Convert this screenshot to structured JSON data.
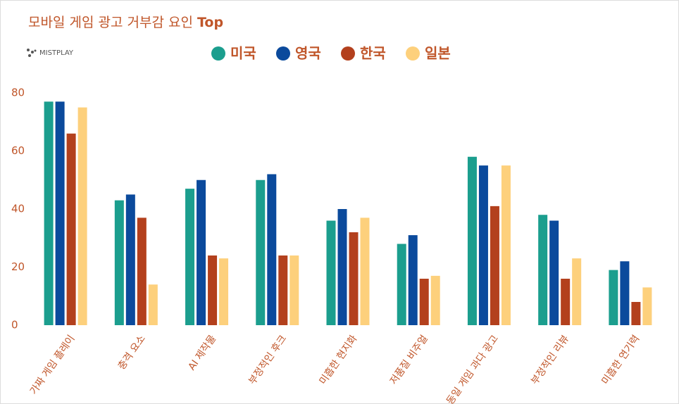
{
  "chart_data": {
    "type": "bar",
    "title": "모바일 게임 광고 거부감 요인",
    "title_emphasis": "Top",
    "brand": "MISTPLAY",
    "categories": [
      "가짜 게임 플레이",
      "충격 요소",
      "AI 제작물",
      "부정적인 후크",
      "미흡한 현지화",
      "저품질 비주얼",
      "동일 게임 과다 광고",
      "부정적인 리뷰",
      "미흡한 연기력"
    ],
    "series": [
      {
        "name": "미국",
        "color": "#1b9e8e",
        "values": [
          77,
          43,
          47,
          50,
          36,
          28,
          58,
          38,
          19
        ]
      },
      {
        "name": "영국",
        "color": "#0b4a9c",
        "values": [
          77,
          45,
          50,
          52,
          40,
          31,
          55,
          36,
          22
        ]
      },
      {
        "name": "한국",
        "color": "#b3401d",
        "values": [
          66,
          37,
          24,
          24,
          32,
          16,
          41,
          16,
          8
        ]
      },
      {
        "name": "일본",
        "color": "#fdd07c",
        "values": [
          75,
          14,
          23,
          24,
          37,
          17,
          55,
          23,
          13
        ]
      }
    ],
    "ylim": [
      0,
      80
    ],
    "yticks": [
      0,
      20,
      40,
      60,
      80
    ],
    "grid": false
  }
}
